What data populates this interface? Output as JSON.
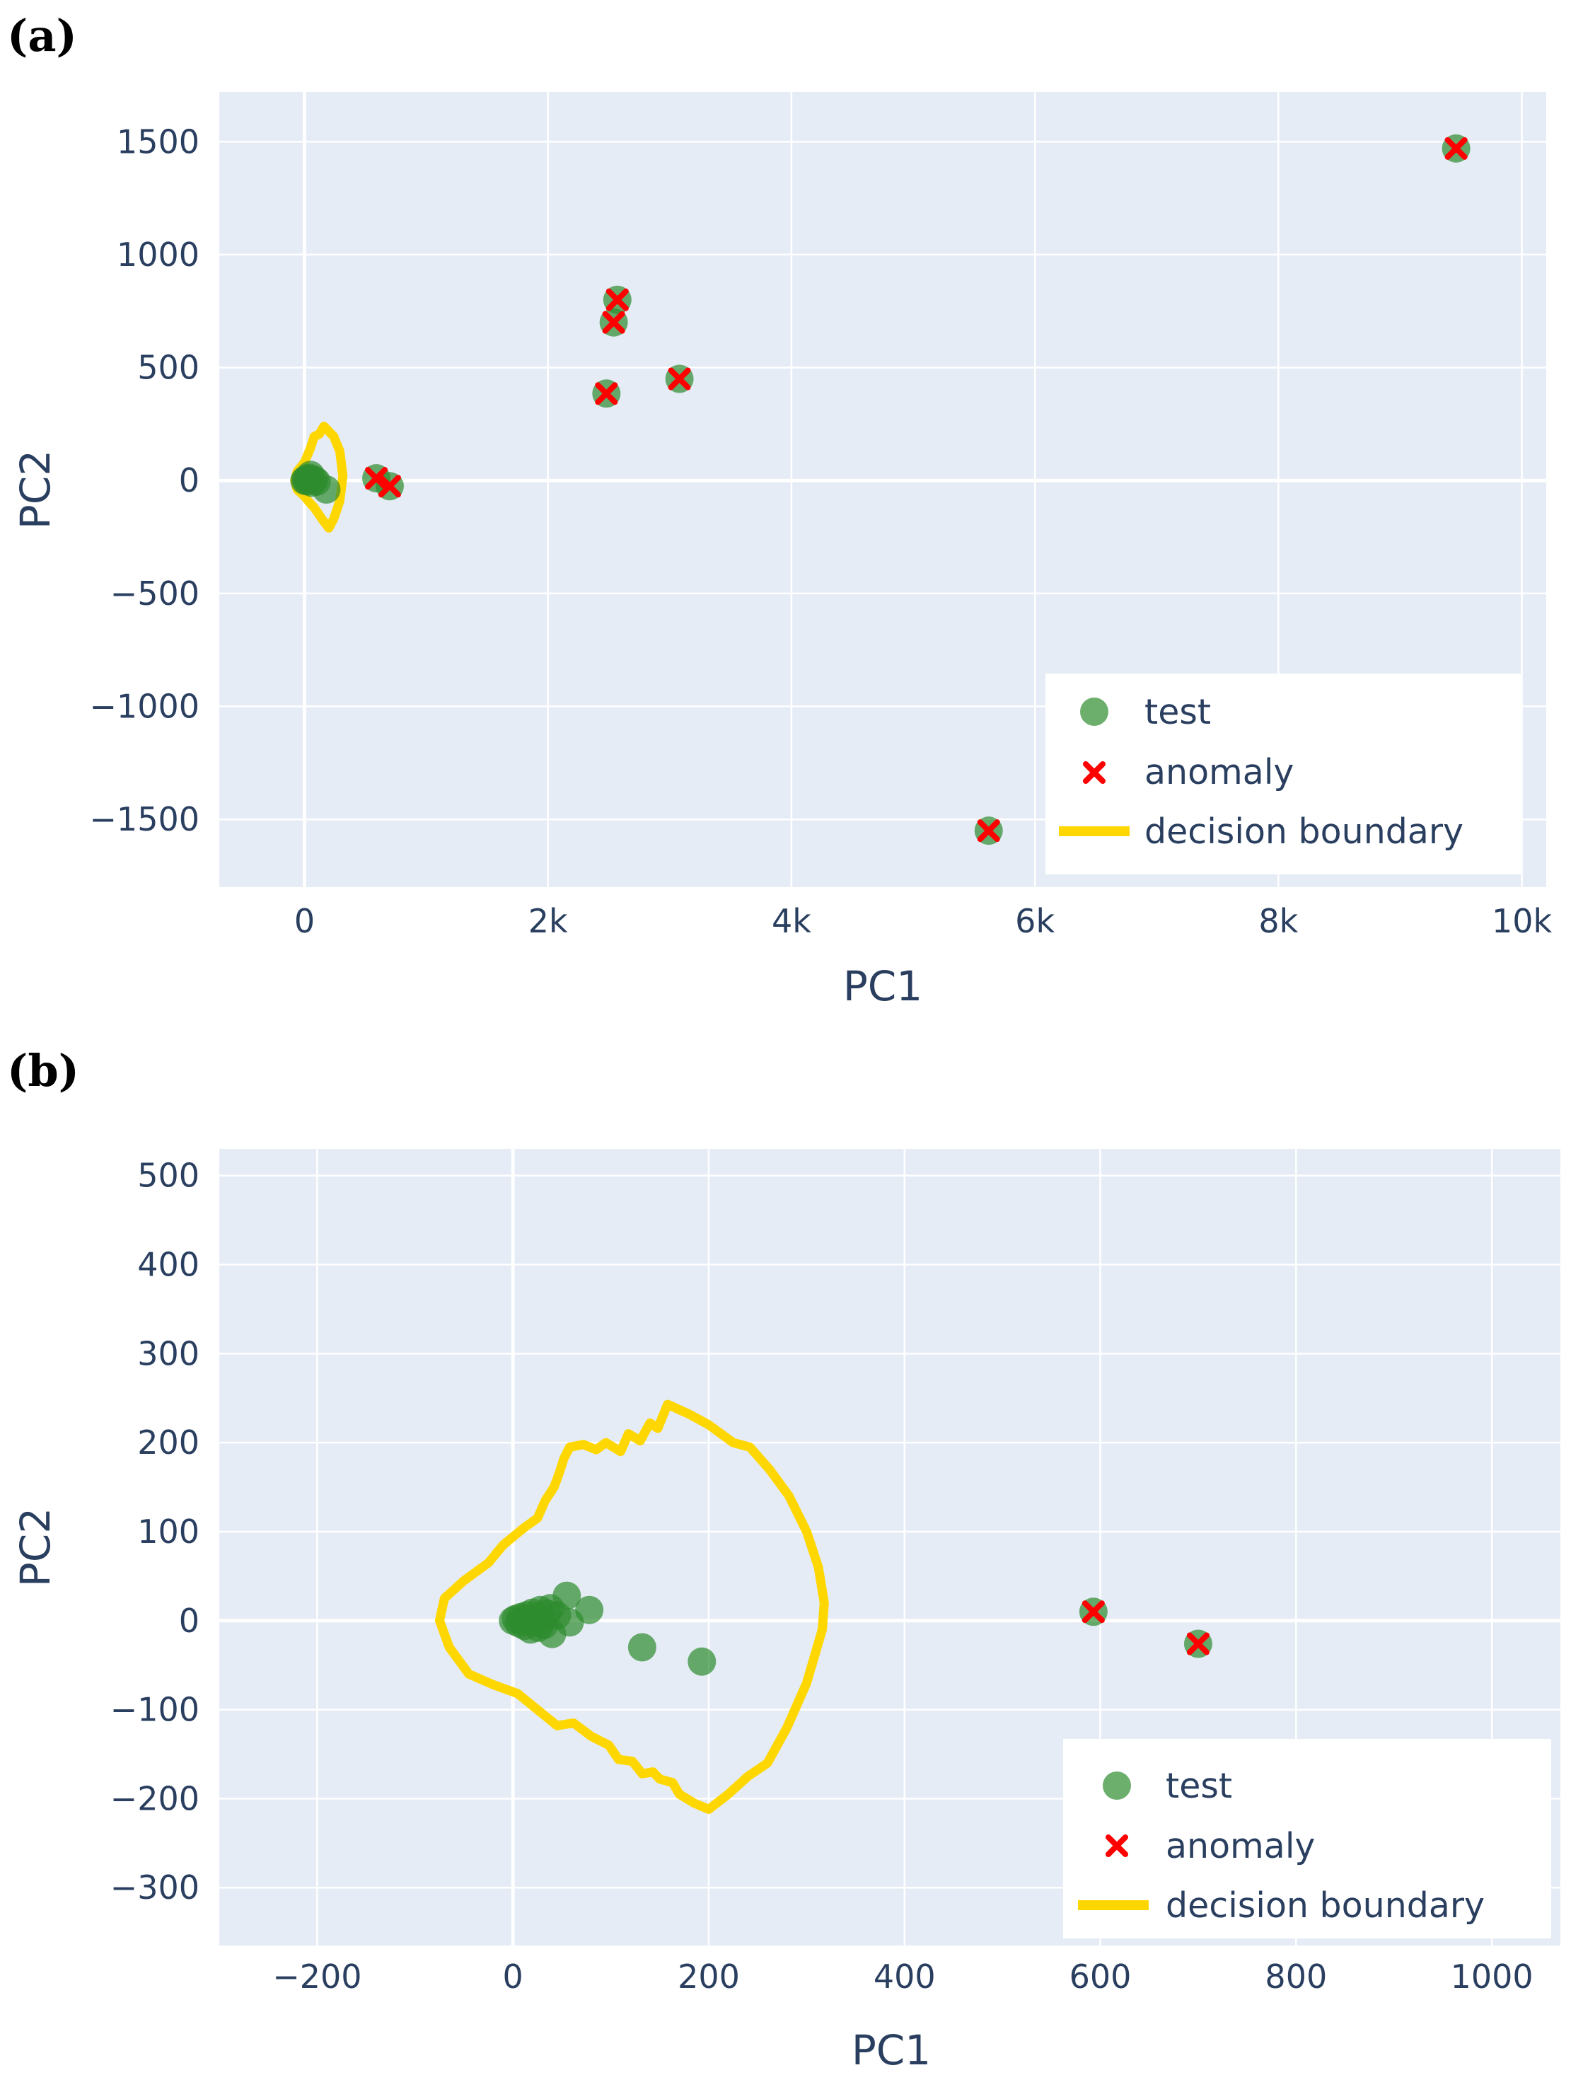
{
  "colors": {
    "plot_bg": "#e5ecf6",
    "grid": "#ffffff",
    "text": "#2a3f5f",
    "test_marker": "#2e8b2e",
    "anomaly_marker": "#ff0000",
    "boundary": "#ffd700"
  },
  "chart_data": [
    {
      "type": "scatter",
      "panel_label": "(a)",
      "xlabel": "PC1",
      "ylabel": "PC2",
      "xlim": [
        -700,
        10200
      ],
      "ylim": [
        -1800,
        1720
      ],
      "xticks": [
        0,
        2000,
        4000,
        6000,
        8000,
        10000
      ],
      "xtick_labels": [
        "0",
        "2k",
        "4k",
        "6k",
        "8k",
        "10k"
      ],
      "yticks": [
        -1500,
        -1000,
        -500,
        0,
        500,
        1000,
        1500
      ],
      "ytick_labels": [
        "−1500",
        "−1000",
        "−500",
        "0",
        "500",
        "1000",
        "1500"
      ],
      "grid": true,
      "legend_position": "bottom-right",
      "series": [
        {
          "name": "test",
          "kind": "marker-circle",
          "points": [
            [
              0,
              0
            ],
            [
              10,
              5
            ],
            [
              20,
              -3
            ],
            [
              30,
              8
            ],
            [
              40,
              12
            ],
            [
              50,
              25
            ],
            [
              60,
              -10
            ],
            [
              80,
              4
            ],
            [
              100,
              -5
            ],
            [
              180,
              -40
            ],
            [
              590,
              10
            ],
            [
              700,
              -25
            ],
            [
              2480,
              385
            ],
            [
              2540,
              700
            ],
            [
              2570,
              800
            ],
            [
              3080,
              450
            ],
            [
              5620,
              -1550
            ],
            [
              9460,
              1470
            ]
          ]
        },
        {
          "name": "anomaly",
          "kind": "marker-x",
          "points": [
            [
              590,
              10
            ],
            [
              700,
              -25
            ],
            [
              2480,
              385
            ],
            [
              2540,
              700
            ],
            [
              2570,
              800
            ],
            [
              3080,
              450
            ],
            [
              5620,
              -1550
            ],
            [
              9460,
              1470
            ]
          ]
        },
        {
          "name": "decision boundary",
          "kind": "line",
          "points": [
            [
              160,
              240
            ],
            [
              240,
              195
            ],
            [
              290,
              130
            ],
            [
              315,
              20
            ],
            [
              290,
              -90
            ],
            [
              240,
              -170
            ],
            [
              200,
              -210
            ],
            [
              150,
              -175
            ],
            [
              80,
              -120
            ],
            [
              30,
              -90
            ],
            [
              0,
              -70
            ],
            [
              -60,
              -40
            ],
            [
              -80,
              0
            ],
            [
              -60,
              40
            ],
            [
              0,
              80
            ],
            [
              50,
              145
            ],
            [
              80,
              195
            ],
            [
              120,
              205
            ],
            [
              160,
              240
            ]
          ]
        }
      ]
    },
    {
      "type": "scatter",
      "panel_label": "(b)",
      "xlabel": "PC1",
      "ylabel": "PC2",
      "xlim": [
        -300,
        1070
      ],
      "ylim": [
        -365,
        530
      ],
      "xticks": [
        -200,
        0,
        200,
        400,
        600,
        800,
        1000
      ],
      "xtick_labels": [
        "−200",
        "0",
        "200",
        "400",
        "600",
        "800",
        "1000"
      ],
      "yticks": [
        -300,
        -200,
        -100,
        0,
        100,
        200,
        300,
        400,
        500
      ],
      "ytick_labels": [
        "−300",
        "−200",
        "−100",
        "0",
        "100",
        "200",
        "300",
        "400",
        "500"
      ],
      "grid": true,
      "legend_position": "bottom-right",
      "series": [
        {
          "name": "test",
          "kind": "marker-circle",
          "points": [
            [
              0,
              0
            ],
            [
              3,
              2
            ],
            [
              6,
              -3
            ],
            [
              8,
              4
            ],
            [
              10,
              0
            ],
            [
              12,
              -6
            ],
            [
              14,
              6
            ],
            [
              16,
              2
            ],
            [
              18,
              -10
            ],
            [
              20,
              9
            ],
            [
              22,
              -2
            ],
            [
              24,
              5
            ],
            [
              26,
              -8
            ],
            [
              28,
              12
            ],
            [
              30,
              0
            ],
            [
              32,
              -5
            ],
            [
              35,
              8
            ],
            [
              38,
              14
            ],
            [
              40,
              -15
            ],
            [
              45,
              6
            ],
            [
              55,
              28
            ],
            [
              58,
              -2
            ],
            [
              78,
              12
            ],
            [
              132,
              -30
            ],
            [
              193,
              -46
            ],
            [
              593,
              10
            ],
            [
              700,
              -26
            ]
          ]
        },
        {
          "name": "anomaly",
          "kind": "marker-x",
          "points": [
            [
              593,
              10
            ],
            [
              700,
              -26
            ]
          ]
        },
        {
          "name": "decision boundary",
          "kind": "line",
          "points": [
            [
              158,
              243
            ],
            [
              180,
              232
            ],
            [
              200,
              220
            ],
            [
              225,
              200
            ],
            [
              242,
              195
            ],
            [
              262,
              170
            ],
            [
              282,
              140
            ],
            [
              300,
              100
            ],
            [
              312,
              60
            ],
            [
              318,
              20
            ],
            [
              316,
              -10
            ],
            [
              300,
              -70
            ],
            [
              280,
              -120
            ],
            [
              260,
              -160
            ],
            [
              240,
              -175
            ],
            [
              220,
              -195
            ],
            [
              200,
              -212
            ],
            [
              185,
              -205
            ],
            [
              170,
              -195
            ],
            [
              163,
              -182
            ],
            [
              150,
              -178
            ],
            [
              143,
              -170
            ],
            [
              132,
              -172
            ],
            [
              122,
              -158
            ],
            [
              108,
              -156
            ],
            [
              98,
              -140
            ],
            [
              80,
              -130
            ],
            [
              62,
              -115
            ],
            [
              45,
              -118
            ],
            [
              25,
              -100
            ],
            [
              5,
              -82
            ],
            [
              -20,
              -72
            ],
            [
              -45,
              -60
            ],
            [
              -65,
              -30
            ],
            [
              -75,
              0
            ],
            [
              -70,
              25
            ],
            [
              -50,
              45
            ],
            [
              -25,
              65
            ],
            [
              -10,
              85
            ],
            [
              12,
              105
            ],
            [
              25,
              115
            ],
            [
              33,
              135
            ],
            [
              42,
              150
            ],
            [
              48,
              168
            ],
            [
              52,
              182
            ],
            [
              58,
              195
            ],
            [
              72,
              198
            ],
            [
              85,
              192
            ],
            [
              95,
              200
            ],
            [
              110,
              190
            ],
            [
              118,
              210
            ],
            [
              130,
              202
            ],
            [
              140,
              222
            ],
            [
              148,
              216
            ],
            [
              158,
              243
            ]
          ]
        }
      ]
    }
  ]
}
